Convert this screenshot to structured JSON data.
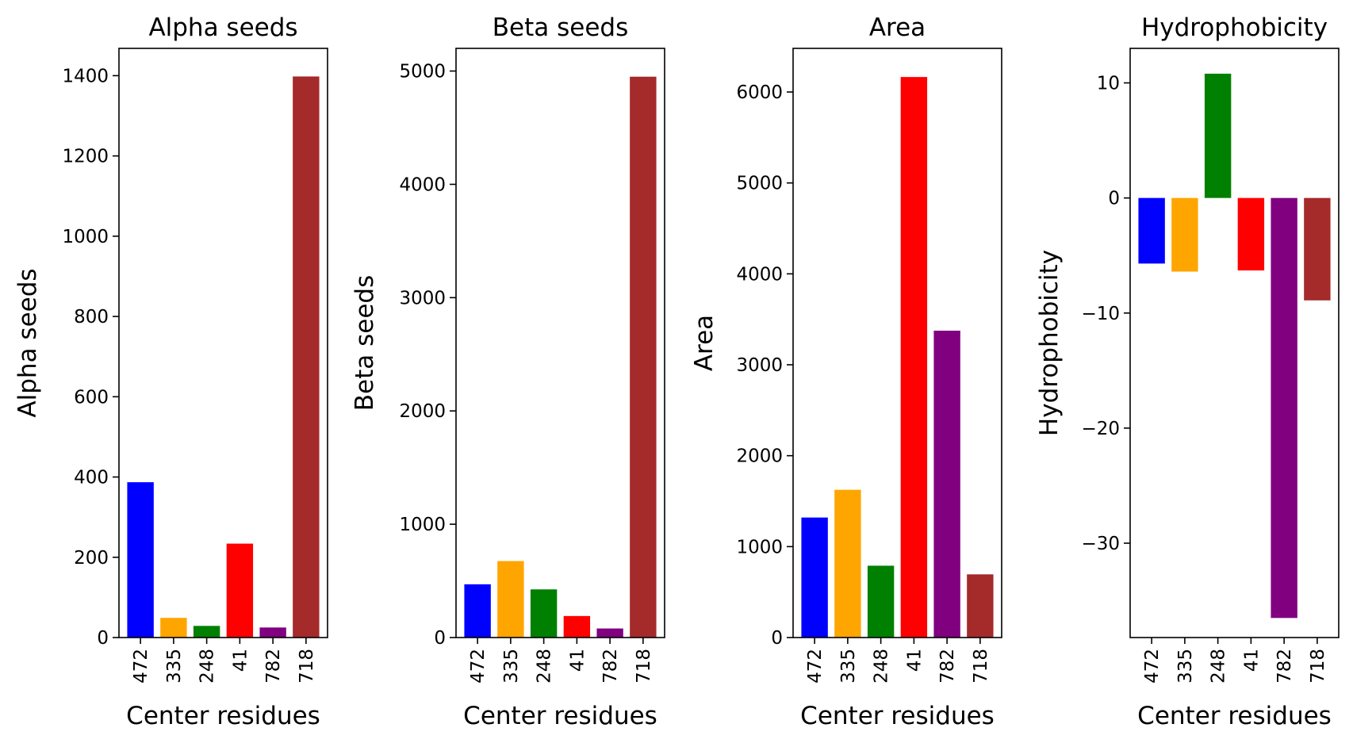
{
  "chart_data": [
    {
      "type": "bar",
      "title": "Alpha seeds",
      "xlabel": "Center residues",
      "ylabel": "Alpha seeds",
      "categories": [
        "472",
        "335",
        "248",
        "41",
        "782",
        "718"
      ],
      "values": [
        387,
        49,
        29,
        234,
        25,
        1398
      ],
      "colors": [
        "#0000ff",
        "#ffa500",
        "#008000",
        "#ff0000",
        "#800080",
        "#a52a2a"
      ],
      "ylim": [
        0,
        1468
      ],
      "yticks": [
        0,
        200,
        400,
        600,
        800,
        1000,
        1200,
        1400
      ],
      "ytick_labels": [
        "0",
        "200",
        "400",
        "600",
        "800",
        "1000",
        "1200",
        "1400"
      ],
      "grid": false
    },
    {
      "type": "bar",
      "title": "Beta seeds",
      "xlabel": "Center residues",
      "ylabel": "Beta seeds",
      "categories": [
        "472",
        "335",
        "248",
        "41",
        "782",
        "718"
      ],
      "values": [
        470,
        675,
        425,
        190,
        80,
        4950
      ],
      "colors": [
        "#0000ff",
        "#ffa500",
        "#008000",
        "#ff0000",
        "#800080",
        "#a52a2a"
      ],
      "ylim": [
        0,
        5200
      ],
      "yticks": [
        0,
        1000,
        2000,
        3000,
        4000,
        5000
      ],
      "ytick_labels": [
        "0",
        "1000",
        "2000",
        "3000",
        "4000",
        "5000"
      ],
      "grid": false
    },
    {
      "type": "bar",
      "title": "Area",
      "xlabel": "Center residues",
      "ylabel": "Area",
      "categories": [
        "472",
        "335",
        "248",
        "41",
        "782",
        "718"
      ],
      "values": [
        1320,
        1625,
        790,
        6165,
        3375,
        695
      ],
      "colors": [
        "#0000ff",
        "#ffa500",
        "#008000",
        "#ff0000",
        "#800080",
        "#a52a2a"
      ],
      "ylim": [
        0,
        6480
      ],
      "yticks": [
        0,
        1000,
        2000,
        3000,
        4000,
        5000,
        6000
      ],
      "ytick_labels": [
        "0",
        "1000",
        "2000",
        "3000",
        "4000",
        "5000",
        "6000"
      ],
      "grid": false
    },
    {
      "type": "bar",
      "title": "Hydrophobicity",
      "xlabel": "Center residues",
      "ylabel": "Hydrophobicity",
      "categories": [
        "472",
        "335",
        "248",
        "41",
        "782",
        "718"
      ],
      "values": [
        -5.7,
        -6.4,
        10.8,
        -6.3,
        -36.5,
        -8.9
      ],
      "colors": [
        "#0000ff",
        "#ffa500",
        "#008000",
        "#ff0000",
        "#800080",
        "#a52a2a"
      ],
      "ylim": [
        -38.2,
        13.0
      ],
      "yticks": [
        10,
        0,
        -10,
        -20,
        -30
      ],
      "ytick_labels": [
        "10",
        "0",
        "−10",
        "−20",
        "−30"
      ],
      "grid": false
    }
  ]
}
